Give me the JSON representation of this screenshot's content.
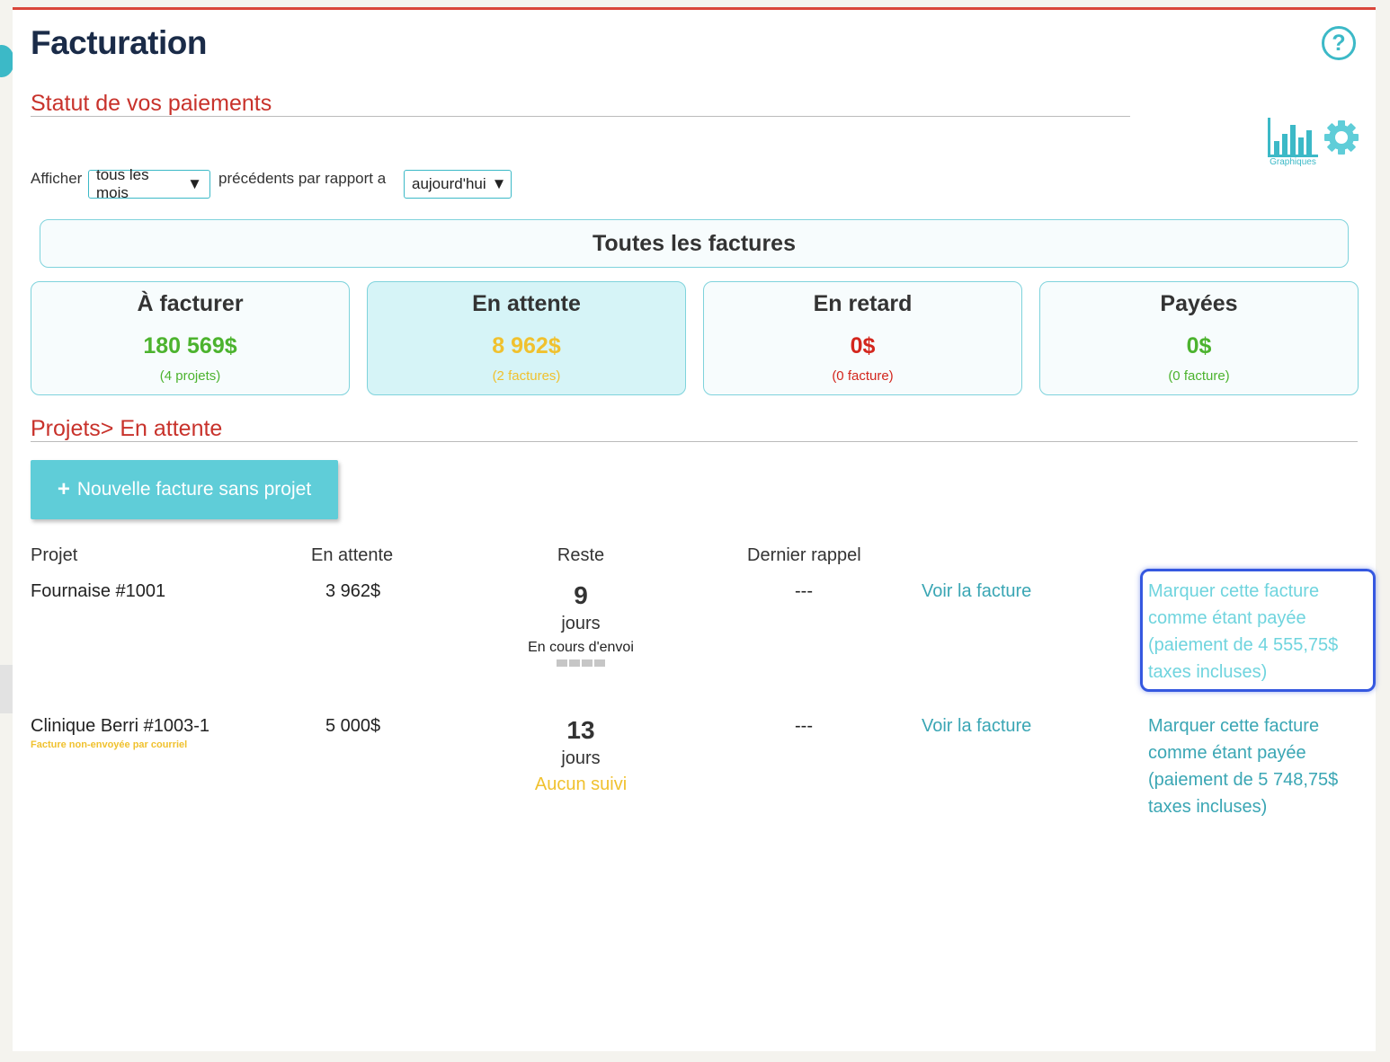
{
  "header": {
    "title": "Facturation",
    "help_icon": "?"
  },
  "statut": {
    "title": "Statut de vos paiements",
    "charts_label": "Graphiques",
    "filter": {
      "label_afficher": "Afficher",
      "period_value": "tous les mois",
      "label_middle": "précédents par rapport a",
      "ref_value": "aujourd'hui"
    }
  },
  "summary": {
    "all_label": "Toutes les factures",
    "cards": [
      {
        "title": "À facturer",
        "amount": "180 569$",
        "sub": "(4 projets)",
        "color": "#4cb32e"
      },
      {
        "title": "En attente",
        "amount": "8 962$",
        "sub": "(2 factures)",
        "color": "#f0c12e"
      },
      {
        "title": "En retard",
        "amount": "0$",
        "sub": "(0 facture)",
        "color": "#d3261d"
      },
      {
        "title": "Payées",
        "amount": "0$",
        "sub": "(0 facture)",
        "color": "#4cb32e"
      }
    ]
  },
  "projets": {
    "title": "Projets> En attente",
    "new_button": {
      "plus": "+",
      "label": "Nouvelle facture sans projet"
    },
    "columns": [
      "Projet",
      "En attente",
      "Reste",
      "Dernier rappel"
    ],
    "rows": [
      {
        "name": "Fournaise #1001",
        "note": "",
        "amount": "3 962$",
        "days": "9",
        "days_unit": "jours",
        "status": "En cours d'envoi",
        "last_reminder": "---",
        "view_link": "Voir la facture",
        "mark_link": [
          "Marquer cette facture",
          "comme étant payée",
          "(paiement de 4 555,75$",
          "taxes incluses)"
        ]
      },
      {
        "name": "Clinique Berri #1003-1",
        "note": "Facture non-envoyée par courriel",
        "amount": "5 000$",
        "days": "13",
        "days_unit": "jours",
        "status": "Aucun suivi",
        "last_reminder": "---",
        "view_link": "Voir la facture",
        "mark_link": [
          "Marquer cette facture",
          "comme étant payée",
          "(paiement de 5 748,75$",
          "taxes incluses)"
        ]
      }
    ]
  },
  "colors": {
    "accent": "#3cb9c7",
    "heading_red": "#c8322b",
    "link": "#3aa6b4",
    "warning": "#f0c12e",
    "navy": "#1a2b48"
  },
  "icons": [
    "help-icon",
    "bar-chart-icon",
    "gear-icon",
    "plus-icon",
    "caret-down-icon"
  ]
}
